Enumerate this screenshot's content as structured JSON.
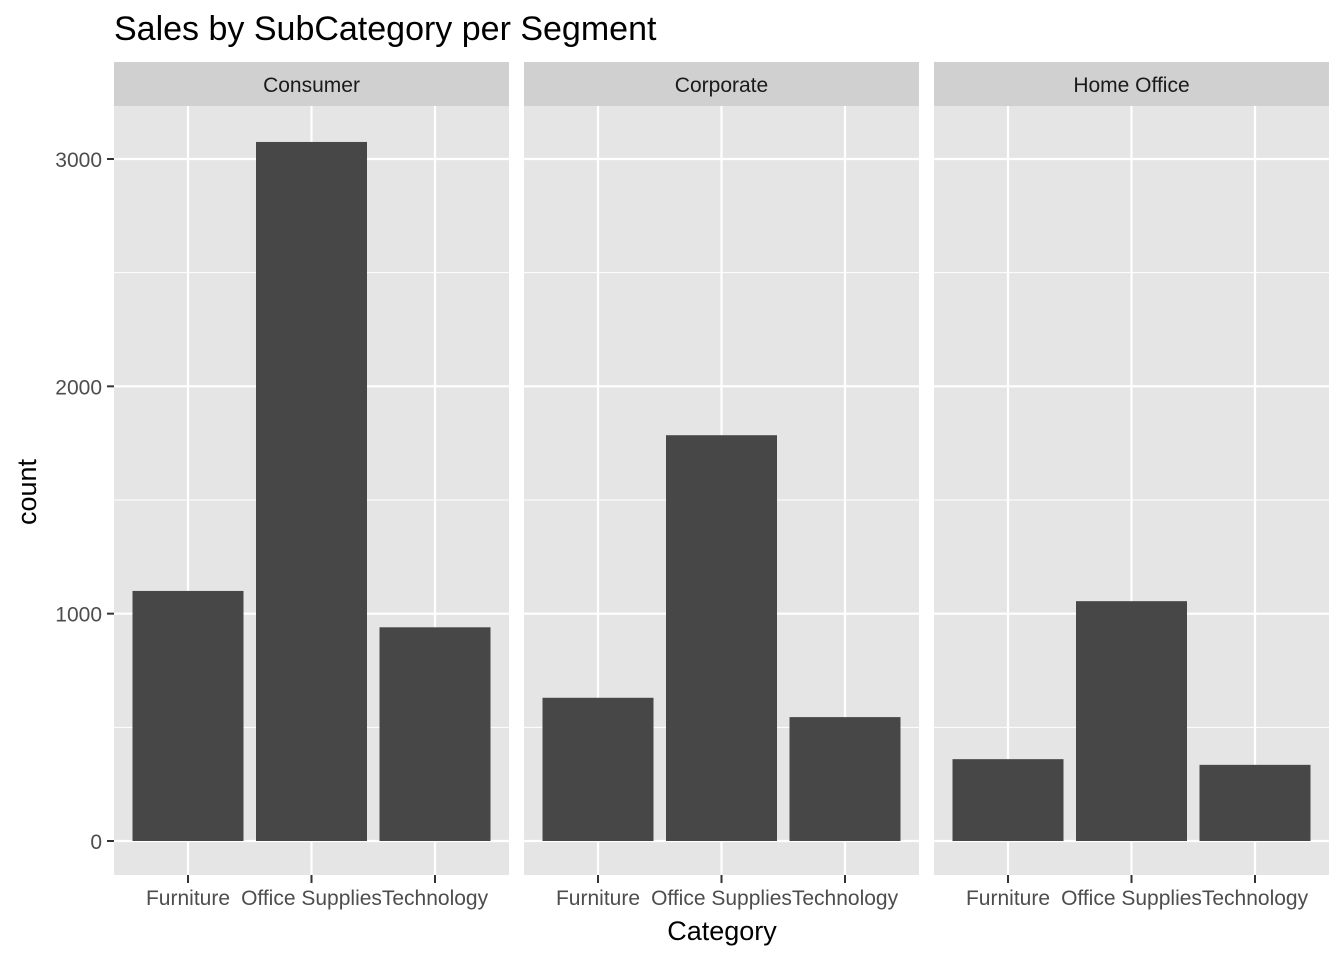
{
  "title": "Sales by SubCategory per Segment",
  "chart_data": {
    "type": "bar",
    "title": "Sales by SubCategory per Segment",
    "xlabel": "Category",
    "ylabel": "count",
    "categories": [
      "Furniture",
      "Office Supplies",
      "Technology"
    ],
    "ylim": [
      0,
      3250
    ],
    "yticks": [
      0,
      1000,
      2000,
      3000
    ],
    "grid": true,
    "facets": [
      {
        "name": "Consumer",
        "values": [
          1100,
          3075,
          940
        ]
      },
      {
        "name": "Corporate",
        "values": [
          630,
          1785,
          545
        ]
      },
      {
        "name": "Home Office",
        "values": [
          360,
          1055,
          335
        ]
      }
    ],
    "colors": {
      "bar": "#474747",
      "panel": "#e5e5e5",
      "strip": "#d0d0d0",
      "grid": "#ffffff",
      "tick_label": "#4d4d4d",
      "text": "#000000"
    }
  }
}
